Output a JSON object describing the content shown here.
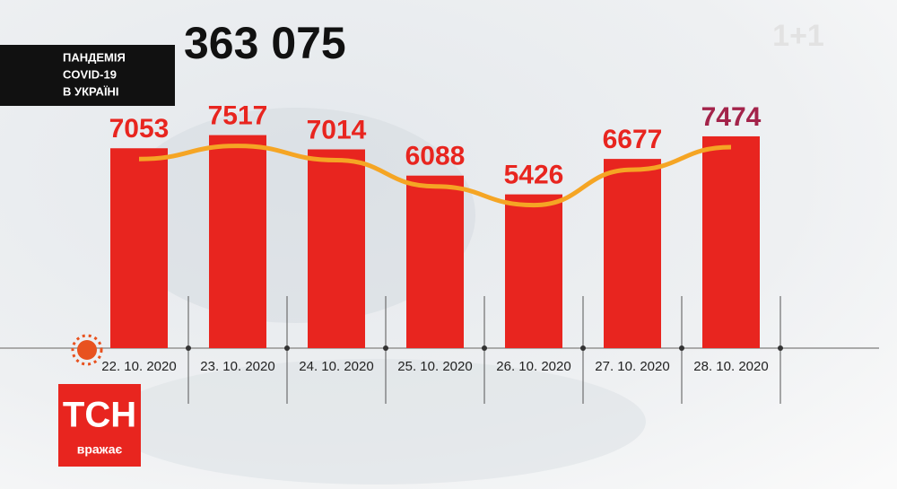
{
  "chart_data": {
    "type": "bar",
    "title": "363 075",
    "caption": [
      "ПАНДЕМІЯ",
      "COVID-19",
      "В УКРАЇНІ"
    ],
    "categories": [
      "22. 10. 2020",
      "23. 10. 2020",
      "24. 10. 2020",
      "25. 10. 2020",
      "26. 10. 2020",
      "27. 10. 2020",
      "28. 10. 2020"
    ],
    "values": [
      7053,
      7517,
      7014,
      6088,
      5426,
      6677,
      7474
    ],
    "color": "#e8251f",
    "label_colors": [
      "#e8251f",
      "#e8251f",
      "#e8251f",
      "#e8251f",
      "#e8251f",
      "#e8251f",
      "#a3234a"
    ],
    "trend_color": "#f5a524",
    "ylim": [
      0,
      12000
    ]
  },
  "branding": {
    "logo": "ТСН",
    "slogan": "вражає",
    "watermark": "1+1"
  }
}
